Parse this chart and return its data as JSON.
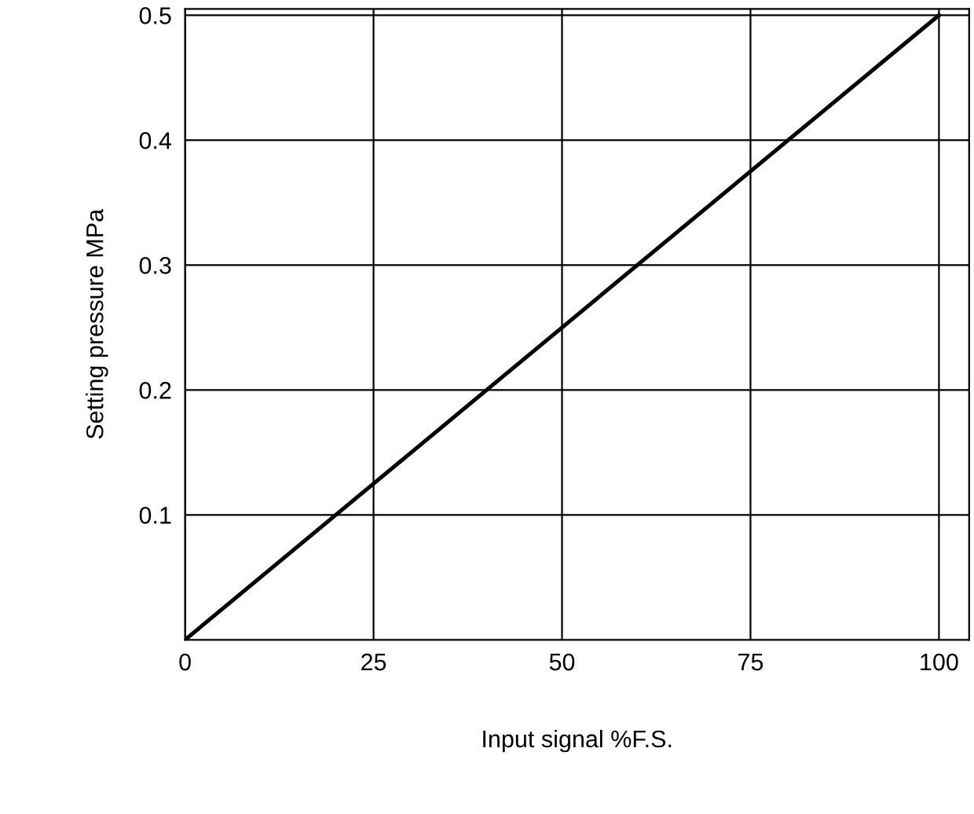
{
  "chart_data": {
    "type": "line",
    "xlabel": "Input signal %F.S.",
    "ylabel": "Setting pressure MPa",
    "x": [
      0,
      100
    ],
    "series": [
      {
        "color": "#000000",
        "values": [
          0,
          0.5
        ]
      }
    ],
    "xlim": [
      0,
      104
    ],
    "ylim": [
      0,
      0.505
    ],
    "xticks": [
      0,
      25,
      50,
      75,
      100
    ],
    "yticks": [
      0.1,
      0.2,
      0.3,
      0.4,
      0.5
    ],
    "grid": true,
    "legend": false,
    "marker": "none",
    "line_style": "solid"
  }
}
